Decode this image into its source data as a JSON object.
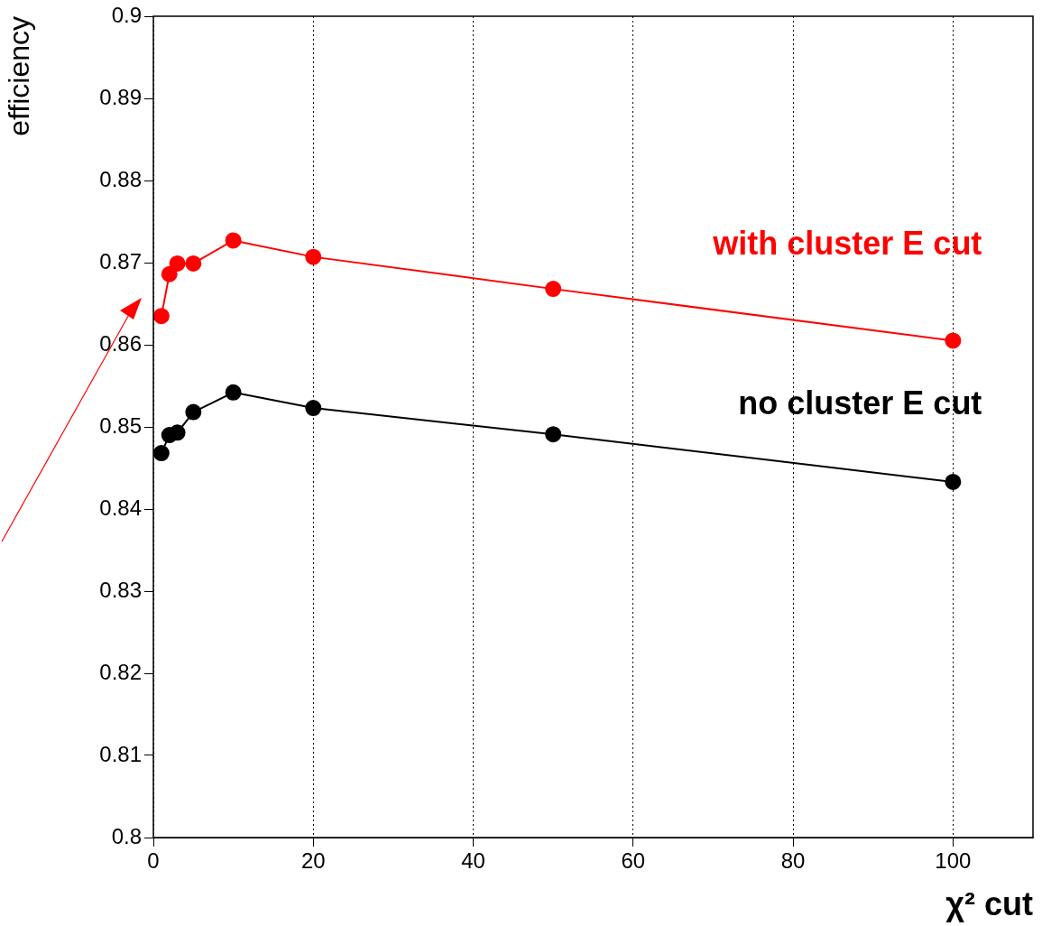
{
  "chart_data": {
    "type": "line",
    "xlabel": "χ² cut",
    "ylabel": "efficiency",
    "x": [
      1,
      2,
      3,
      5,
      10,
      20,
      50,
      100
    ],
    "series": [
      {
        "name": "with cluster E cut",
        "color": "#ff0000",
        "values": [
          0.8635,
          0.8686,
          0.8699,
          0.8699,
          0.8727,
          0.8707,
          0.8668,
          0.8605
        ]
      },
      {
        "name": "no cluster E cut",
        "color": "#000000",
        "values": [
          0.8468,
          0.849,
          0.8493,
          0.8518,
          0.8542,
          0.8523,
          0.8491,
          0.8433
        ]
      }
    ],
    "xlim": [
      0,
      110
    ],
    "xticks": [
      0,
      20,
      40,
      60,
      80,
      100
    ],
    "ylim": [
      0.8,
      0.9
    ],
    "yticks": [
      0.8,
      0.81,
      0.82,
      0.83,
      0.84,
      0.85,
      0.86,
      0.87,
      0.88,
      0.89,
      0.9
    ],
    "grid": "x",
    "legend": false,
    "marker": "circle",
    "line_style": "solid"
  }
}
